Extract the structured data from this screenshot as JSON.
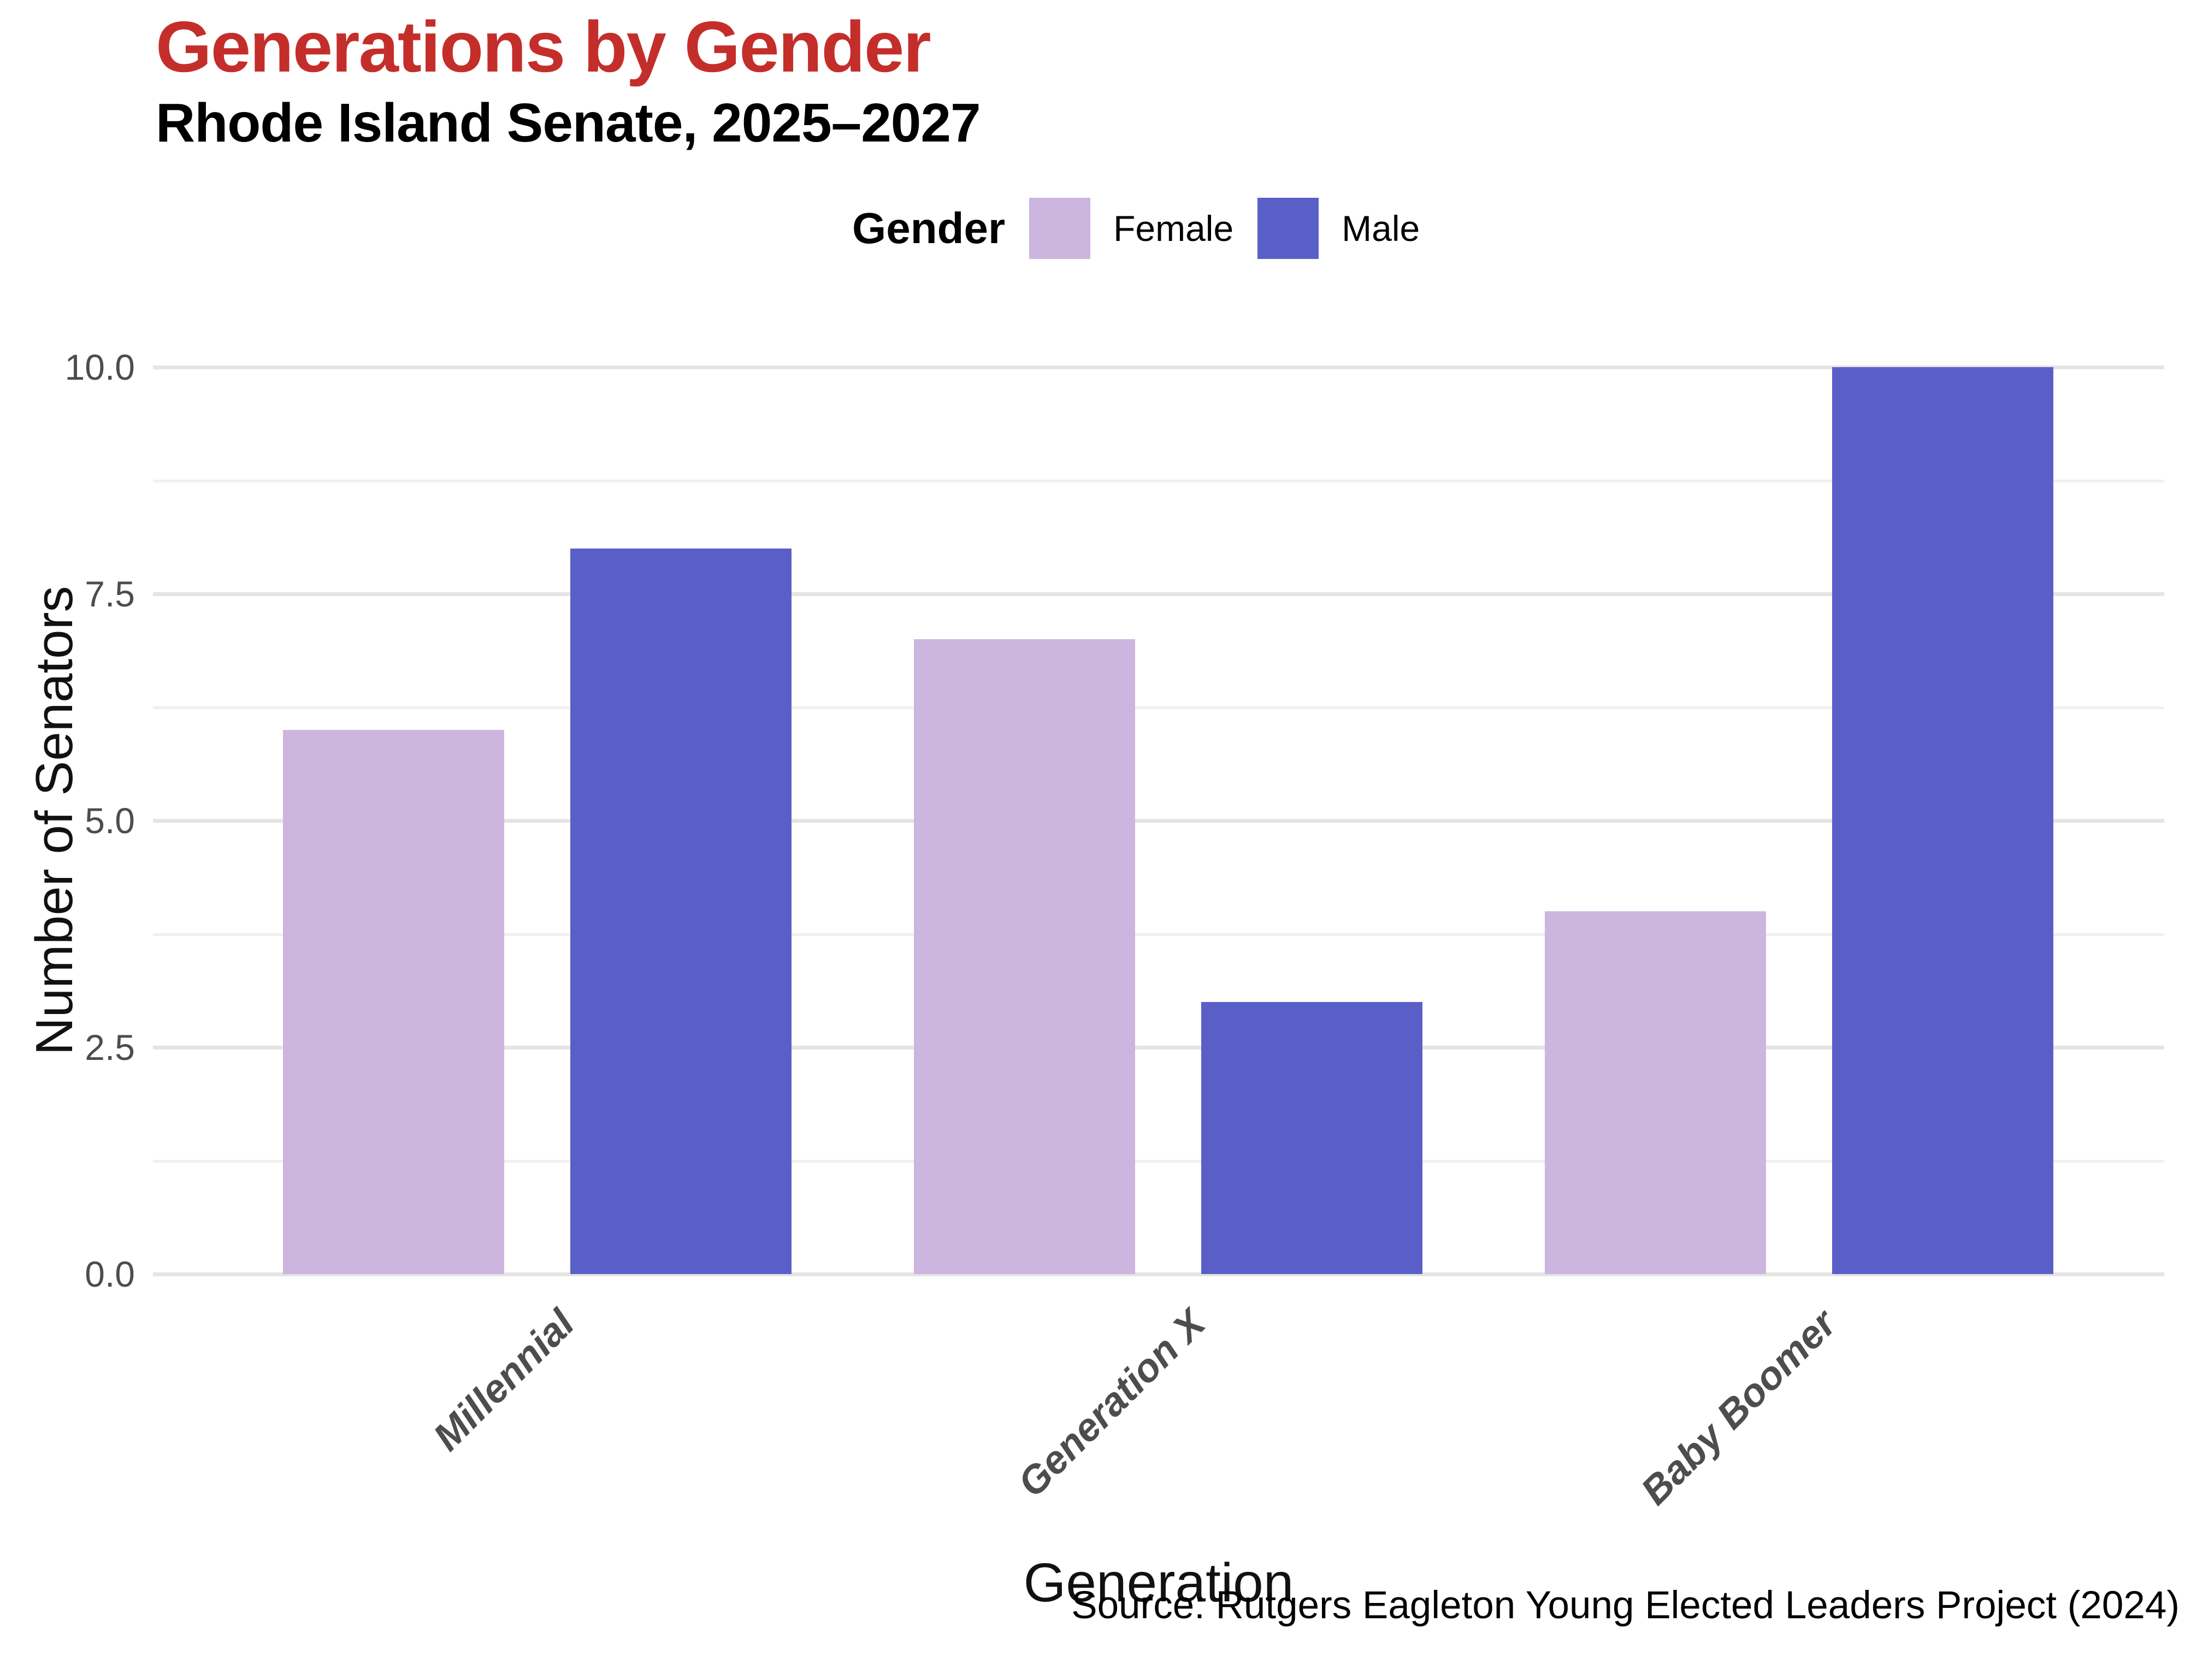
{
  "header": {
    "title": "Generations by Gender",
    "subtitle": "Rhode Island Senate, 2025–2027",
    "title_color": "#c42e2a"
  },
  "legend": {
    "title": "Gender",
    "items": [
      {
        "label": "Female",
        "color": "#ccb5de"
      },
      {
        "label": "Male",
        "color": "#5a5fc8"
      }
    ],
    "position": "top"
  },
  "axes": {
    "y_title": "Number of Senators",
    "x_title": "Generation",
    "ytick_labels": [
      "0.0",
      "2.5",
      "5.0",
      "7.5",
      "10.0"
    ],
    "tick_color": "#4d4d4d"
  },
  "source_note": "Source: Rutgers Eagleton Young Elected Leaders Project (2024)",
  "chart_data": {
    "type": "bar",
    "categories": [
      "Millennial",
      "Generation X",
      "Baby Boomer"
    ],
    "series": [
      {
        "name": "Female",
        "values": [
          6,
          7,
          4
        ],
        "color": "#ccb5de"
      },
      {
        "name": "Male",
        "values": [
          8,
          3,
          10
        ],
        "color": "#5a5fc8"
      }
    ],
    "title": "Generations by Gender",
    "subtitle": "Rhode Island Senate, 2025–2027",
    "xlabel": "Generation",
    "ylabel": "Number of Senators",
    "ylim": [
      0,
      10
    ],
    "yticks": [
      0,
      2.5,
      5,
      7.5,
      10
    ],
    "minor_gridlines": [
      1.25,
      3.75,
      6.25,
      8.75
    ],
    "grid": true,
    "legend_position": "top-center",
    "bar_grouping": "dodge"
  }
}
